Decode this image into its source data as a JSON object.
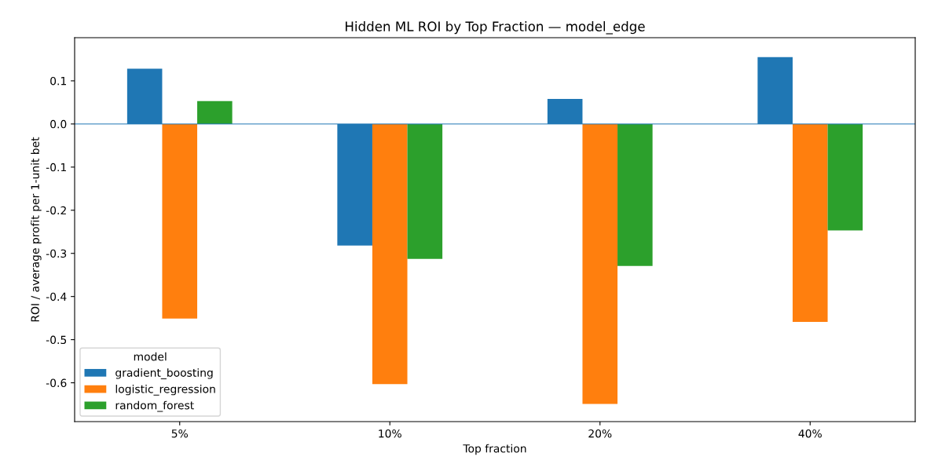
{
  "chart_data": {
    "type": "bar",
    "title": "Hidden ML ROI by Top Fraction — model_edge",
    "xlabel": "Top fraction",
    "ylabel": "ROI / average profit per 1-unit bet",
    "categories": [
      "5%",
      "10%",
      "20%",
      "40%"
    ],
    "series": [
      {
        "name": "gradient_boosting",
        "color": "#1f77b4",
        "values": [
          0.128,
          -0.282,
          0.058,
          0.155
        ]
      },
      {
        "name": "logistic_regression",
        "color": "#ff7f0e",
        "values": [
          -0.451,
          -0.603,
          -0.649,
          -0.459
        ]
      },
      {
        "name": "random_forest",
        "color": "#2ca02c",
        "values": [
          0.053,
          -0.313,
          -0.329,
          -0.247
        ]
      }
    ],
    "ylim": [
      -0.69,
      0.2
    ],
    "yticks": [
      -0.6,
      -0.5,
      -0.4,
      -0.3,
      -0.2,
      -0.1,
      {
        "value": 0,
        "label": "0.0"
      },
      0.1
    ],
    "ref_lines": [
      {
        "axis": "y",
        "value": 0,
        "color": "#1f77b4"
      }
    ],
    "legend": "bottom left",
    "legend_title": "model",
    "grid": false
  }
}
